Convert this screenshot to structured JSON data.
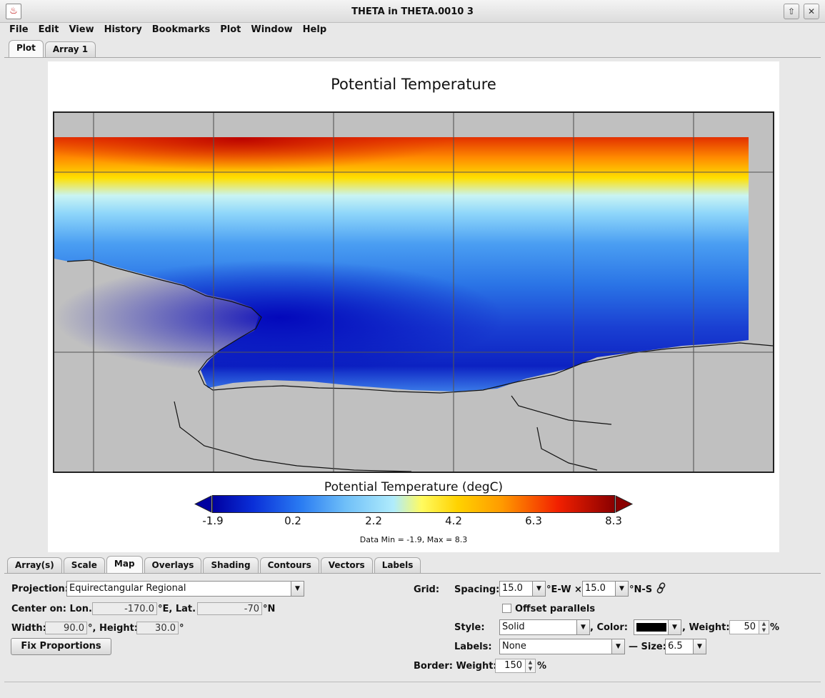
{
  "window": {
    "title": "THETA in THETA.0010 3",
    "buttons": [
      "maximize",
      "close"
    ]
  },
  "menu": [
    "File",
    "Edit",
    "View",
    "History",
    "Bookmarks",
    "Plot",
    "Window",
    "Help"
  ],
  "top_tabs": [
    {
      "label": "Plot",
      "active": true
    },
    {
      "label": "Array 1",
      "active": false
    }
  ],
  "plot": {
    "title": "Potential Temperature",
    "colorbar": {
      "title": "Potential Temperature (degC)",
      "ticks": [
        "-1.9",
        "0.2",
        "2.2",
        "4.2",
        "6.3",
        "8.3"
      ],
      "min": -1.9,
      "max": 8.3,
      "colors": [
        "#0000a0",
        "#0a2fd8",
        "#2a7cf2",
        "#6fbff8",
        "#b0ecfc",
        "#fffb60",
        "#ffd200",
        "#ff9a00",
        "#f22000",
        "#8a0000"
      ]
    },
    "data_range": "Data Min = -1.9, Max = 8.3",
    "land_color": "#c0c0c0"
  },
  "bottom_tabs": [
    {
      "label": "Array(s)",
      "active": false
    },
    {
      "label": "Scale",
      "active": false
    },
    {
      "label": "Map",
      "active": true
    },
    {
      "label": "Overlays",
      "active": false
    },
    {
      "label": "Shading",
      "active": false
    },
    {
      "label": "Contours",
      "active": false
    },
    {
      "label": "Vectors",
      "active": false
    },
    {
      "label": "Labels",
      "active": false
    }
  ],
  "map": {
    "projection_label": "Projection:",
    "projection": "Equirectangular Regional",
    "center_label": "Center on: Lon.",
    "center_lon": "-170.0",
    "lat_label": "°E, Lat.",
    "center_lat": "-70",
    "lat_unit": "°N",
    "width_label": "Width:",
    "width": "90.0",
    "height_label": "°, Height:",
    "height": "30.0",
    "height_unit": "°",
    "fix_button": "Fix Proportions"
  },
  "grid": {
    "label": "Grid:",
    "spacing_label": "Spacing:",
    "spacing_ew": "15.0",
    "ew_unit": "°E-W ×",
    "spacing_ns": "15.0",
    "ns_unit": "°N-S",
    "link_icon": "link-icon",
    "offset_label": "Offset parallels",
    "offset_checked": false,
    "style_label": "Style:",
    "style": "Solid",
    "color_label": ", Color:",
    "color": "#000000",
    "weight_label": ", Weight:",
    "weight": "50",
    "weight_unit": "%",
    "labels_label": "Labels:",
    "labels": "None",
    "size_label": "— Size:",
    "size": "6.5"
  },
  "border": {
    "label": "Border: Weight:",
    "weight": "150",
    "unit": "%"
  }
}
